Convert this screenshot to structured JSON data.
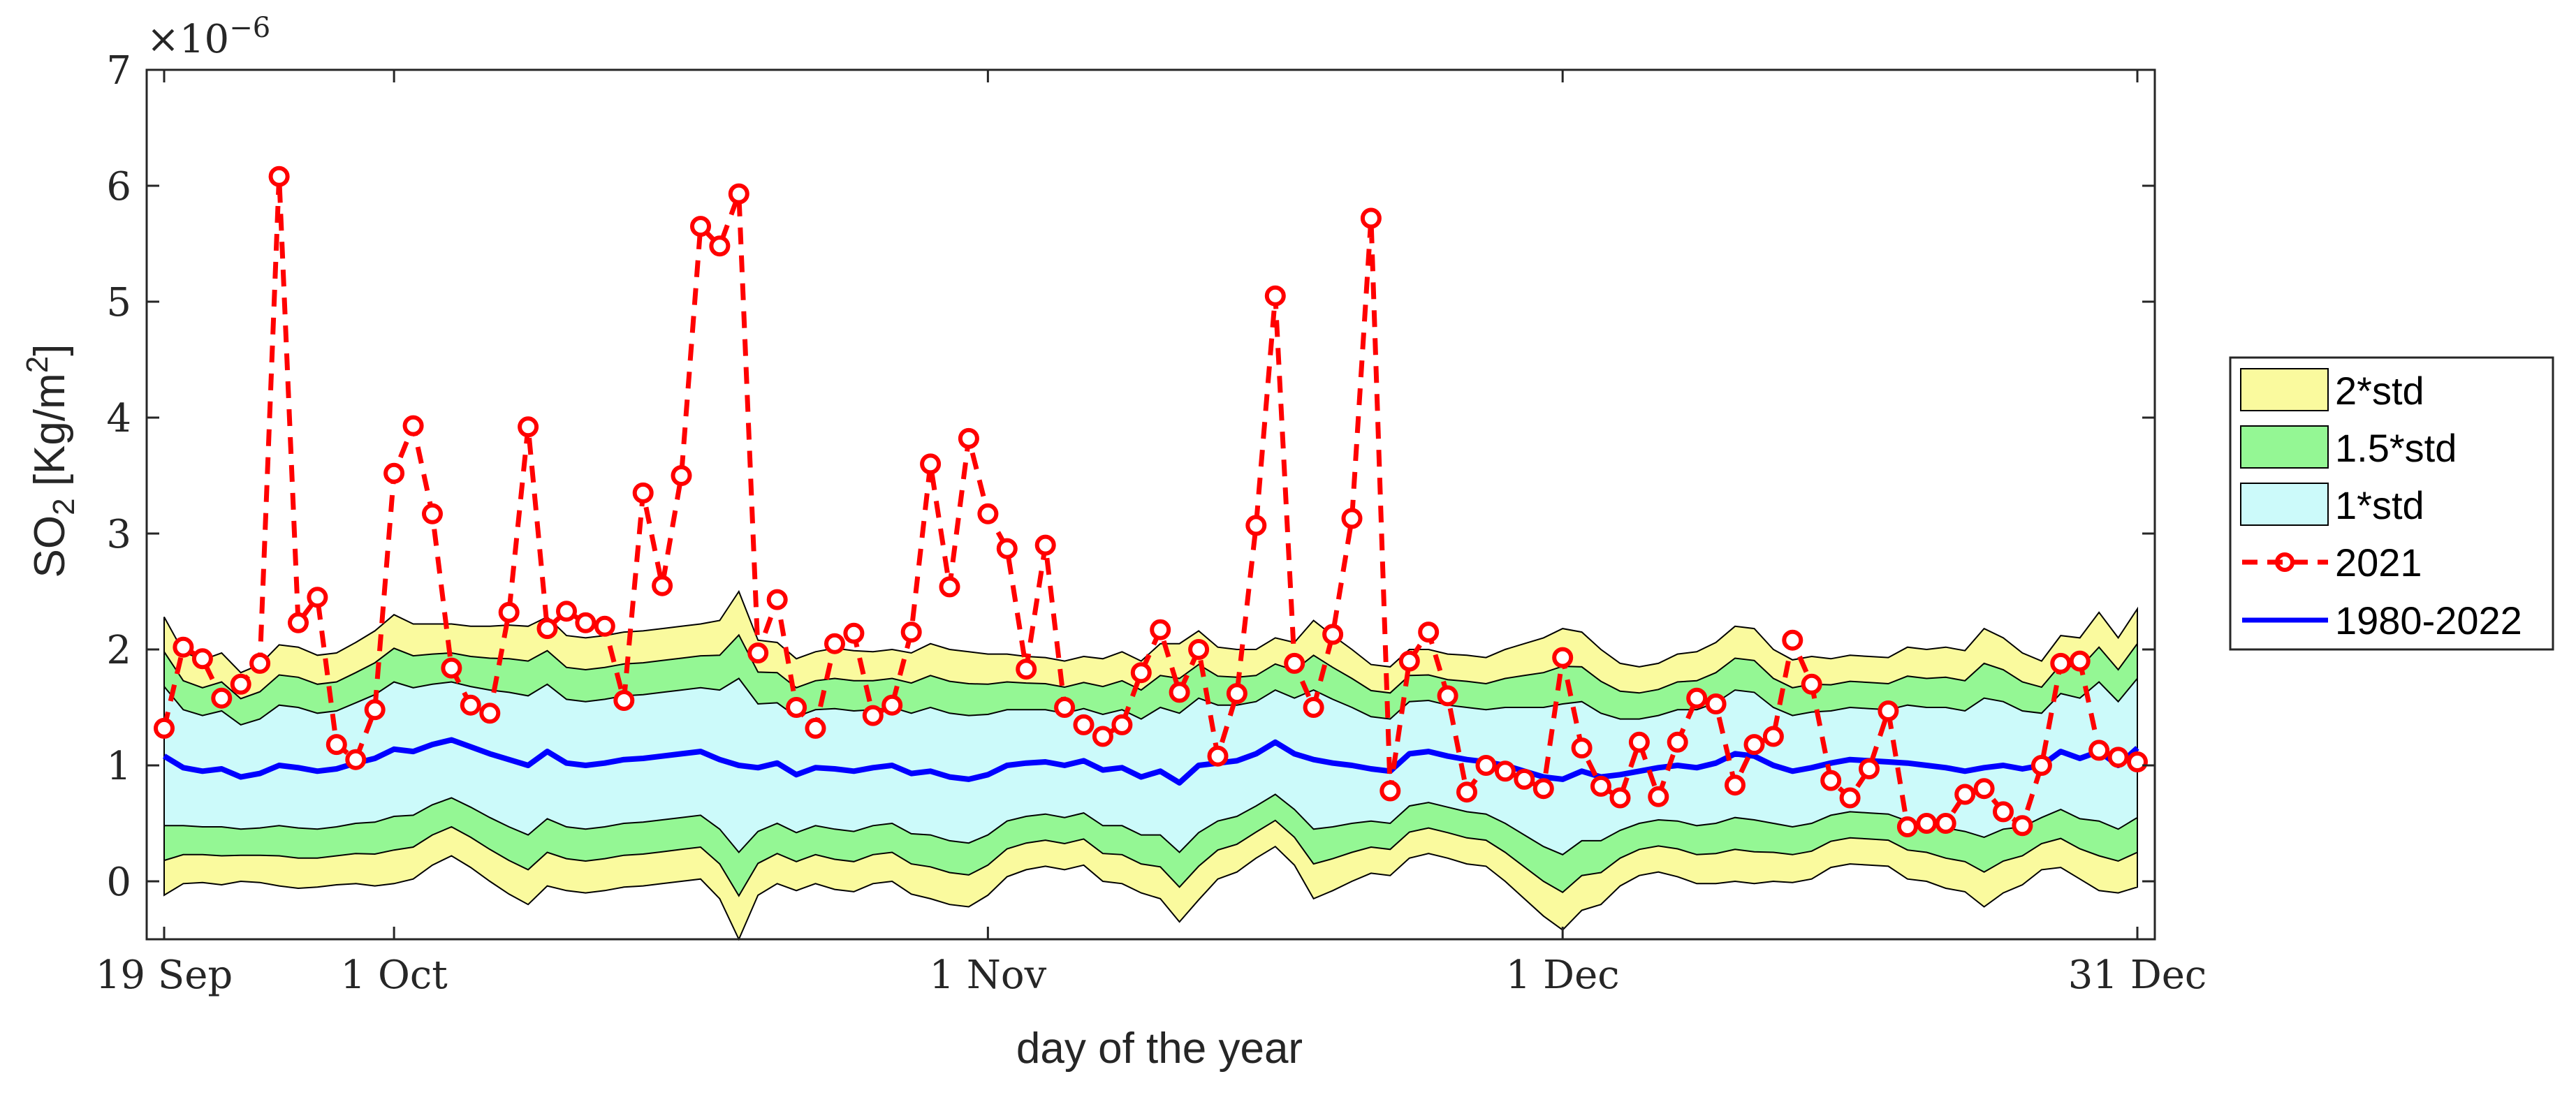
{
  "chart_data": {
    "type": "line",
    "title": "",
    "xlabel": "day of the year",
    "ylabel": "SO",
    "ylabel_subscript": "2",
    "ylabel_units": " [Kg/m",
    "ylabel_units_sup": "2",
    "ylabel_units_end": "]",
    "exponent_label": "×10",
    "exponent_power": "−6",
    "xlim": [
      0,
      103
    ],
    "ylim": [
      -0.5,
      7
    ],
    "yticks": [
      "0",
      "1",
      "2",
      "3",
      "4",
      "5",
      "6",
      "7"
    ],
    "xticks": [
      {
        "x": 0,
        "label": "19 Sep"
      },
      {
        "x": 12,
        "label": "1 Oct"
      },
      {
        "x": 43,
        "label": "1 Nov"
      },
      {
        "x": 73,
        "label": "1 Dec"
      },
      {
        "x": 103,
        "label": "31 Dec"
      }
    ],
    "days": [
      0,
      1,
      2,
      3,
      4,
      5,
      6,
      7,
      8,
      9,
      10,
      11,
      12,
      13,
      14,
      15,
      16,
      17,
      18,
      19,
      20,
      21,
      22,
      23,
      24,
      25,
      26,
      27,
      28,
      29,
      30,
      31,
      32,
      33,
      34,
      35,
      36,
      37,
      38,
      39,
      40,
      41,
      42,
      43,
      44,
      45,
      46,
      47,
      48,
      49,
      50,
      51,
      52,
      53,
      54,
      55,
      56,
      57,
      58,
      59,
      60,
      61,
      62,
      63,
      64,
      65,
      66,
      67,
      68,
      69,
      70,
      71,
      72,
      73,
      74,
      75,
      76,
      77,
      78,
      79,
      80,
      81,
      82,
      83,
      84,
      85,
      86,
      87,
      88,
      89,
      90,
      91,
      92,
      93,
      94,
      95,
      96,
      97,
      98,
      99,
      100,
      101,
      102,
      103
    ],
    "series": [
      {
        "name": "1980-2022",
        "values": [
          1.08,
          0.98,
          0.95,
          0.97,
          0.9,
          0.93,
          1.0,
          0.98,
          0.95,
          0.97,
          1.02,
          1.06,
          1.14,
          1.12,
          1.18,
          1.22,
          1.16,
          1.1,
          1.05,
          1.0,
          1.12,
          1.02,
          1.0,
          1.02,
          1.05,
          1.06,
          1.08,
          1.1,
          1.12,
          1.05,
          1.0,
          0.98,
          1.02,
          0.92,
          0.98,
          0.97,
          0.95,
          0.98,
          1.0,
          0.93,
          0.95,
          0.9,
          0.88,
          0.92,
          1.0,
          1.02,
          1.03,
          1.0,
          1.04,
          0.96,
          0.98,
          0.9,
          0.95,
          0.85,
          1.0,
          1.02,
          1.04,
          1.1,
          1.2,
          1.1,
          1.05,
          1.02,
          1.0,
          0.97,
          0.95,
          1.1,
          1.12,
          1.08,
          1.05,
          1.03,
          1.0,
          0.95,
          0.9,
          0.88,
          0.95,
          0.9,
          0.92,
          0.95,
          0.98,
          1.0,
          0.98,
          1.02,
          1.1,
          1.08,
          1.0,
          0.95,
          0.98,
          1.02,
          1.05,
          1.04,
          1.03,
          1.02,
          1.0,
          0.98,
          0.95,
          0.98,
          1.0,
          0.97,
          1.0,
          1.12,
          1.06,
          1.12,
          1.0,
          1.15
        ]
      },
      {
        "name": "2021",
        "days": [
          0,
          1,
          2,
          3,
          4,
          5,
          6,
          7,
          8,
          9,
          10,
          11,
          12,
          13,
          14,
          15,
          16,
          17,
          18,
          19,
          20,
          21,
          22,
          23,
          24,
          25,
          26,
          27,
          28,
          29,
          30,
          31,
          32,
          33,
          34,
          35,
          36,
          37,
          38,
          39,
          40,
          41,
          42,
          43,
          44,
          45,
          46,
          47,
          48,
          49,
          50,
          51,
          52,
          53,
          54,
          55,
          56,
          57,
          58,
          59,
          60,
          61,
          62,
          63,
          64,
          65,
          66,
          67,
          68,
          69,
          70,
          71,
          72,
          73,
          74,
          75,
          76,
          77,
          78,
          79,
          80,
          81,
          82,
          83,
          84,
          85,
          86,
          87,
          88,
          89,
          90,
          91,
          92,
          93,
          94,
          95,
          96,
          97,
          98,
          99,
          100,
          101,
          102,
          103
        ],
        "values": [
          1.32,
          2.02,
          1.92,
          1.58,
          1.7,
          1.88,
          6.08,
          2.23,
          2.45,
          1.18,
          1.05,
          1.48,
          3.52,
          3.93,
          3.17,
          1.84,
          1.52,
          1.45,
          2.32,
          3.92,
          2.18,
          2.33,
          2.23,
          2.2,
          1.56,
          3.35,
          2.55,
          3.5,
          5.65,
          5.48,
          5.93,
          1.97,
          2.43,
          1.5,
          1.32,
          2.05,
          2.14,
          1.43,
          1.52,
          2.15,
          3.6,
          2.54,
          3.82,
          3.17,
          2.87,
          1.83,
          2.9,
          1.5,
          1.35,
          1.25,
          1.35,
          1.8,
          2.17,
          1.63,
          2.0,
          1.08,
          1.62,
          3.07,
          5.05,
          1.88,
          1.5,
          2.13,
          3.13,
          5.72,
          0.78,
          1.9,
          2.15,
          1.6,
          0.77,
          1.0,
          0.95,
          0.88,
          0.8,
          1.93,
          1.15,
          0.82,
          0.72,
          1.2,
          0.73,
          1.2,
          1.58,
          1.53,
          0.83,
          1.18,
          1.25,
          2.08,
          1.7,
          0.87,
          0.72,
          0.97,
          1.47,
          0.47,
          0.5,
          0.5,
          0.75,
          0.8,
          0.6,
          0.48,
          1.0,
          1.88,
          1.9,
          1.13,
          1.07,
          1.03
        ]
      }
    ],
    "std_sigma": [
      0.6,
      0.5,
      0.48,
      0.5,
      0.45,
      0.47,
      0.52,
      0.52,
      0.5,
      0.5,
      0.52,
      0.55,
      0.58,
      0.55,
      0.52,
      0.5,
      0.52,
      0.55,
      0.58,
      0.6,
      0.58,
      0.55,
      0.55,
      0.55,
      0.55,
      0.55,
      0.55,
      0.55,
      0.55,
      0.6,
      0.75,
      0.55,
      0.52,
      0.5,
      0.5,
      0.52,
      0.52,
      0.5,
      0.5,
      0.52,
      0.55,
      0.55,
      0.55,
      0.52,
      0.48,
      0.46,
      0.45,
      0.45,
      0.45,
      0.48,
      0.5,
      0.5,
      0.55,
      0.6,
      0.58,
      0.5,
      0.48,
      0.45,
      0.45,
      0.48,
      0.6,
      0.55,
      0.5,
      0.45,
      0.45,
      0.45,
      0.44,
      0.44,
      0.45,
      0.45,
      0.5,
      0.55,
      0.6,
      0.65,
      0.6,
      0.55,
      0.48,
      0.45,
      0.45,
      0.48,
      0.5,
      0.52,
      0.55,
      0.55,
      0.5,
      0.48,
      0.48,
      0.45,
      0.45,
      0.45,
      0.45,
      0.5,
      0.5,
      0.52,
      0.52,
      0.6,
      0.55,
      0.5,
      0.45,
      0.5,
      0.52,
      0.6,
      0.55,
      0.6
    ],
    "bands": [
      {
        "name": "2*std",
        "k": 2.0,
        "color": "#fafa9e"
      },
      {
        "name": "1.5*std",
        "k": 1.5,
        "color": "#94f794"
      },
      {
        "name": "1*std",
        "k": 1.0,
        "color": "#ccfafa"
      }
    ],
    "legend": {
      "placement": "right",
      "entries": [
        "2*std",
        "1.5*std",
        "1*std",
        "2021",
        "1980-2022"
      ]
    },
    "colors": {
      "mean_line": "#0000ff",
      "year_line": "#ff0000",
      "band_edge": "#000000",
      "axis": "#262626"
    }
  }
}
